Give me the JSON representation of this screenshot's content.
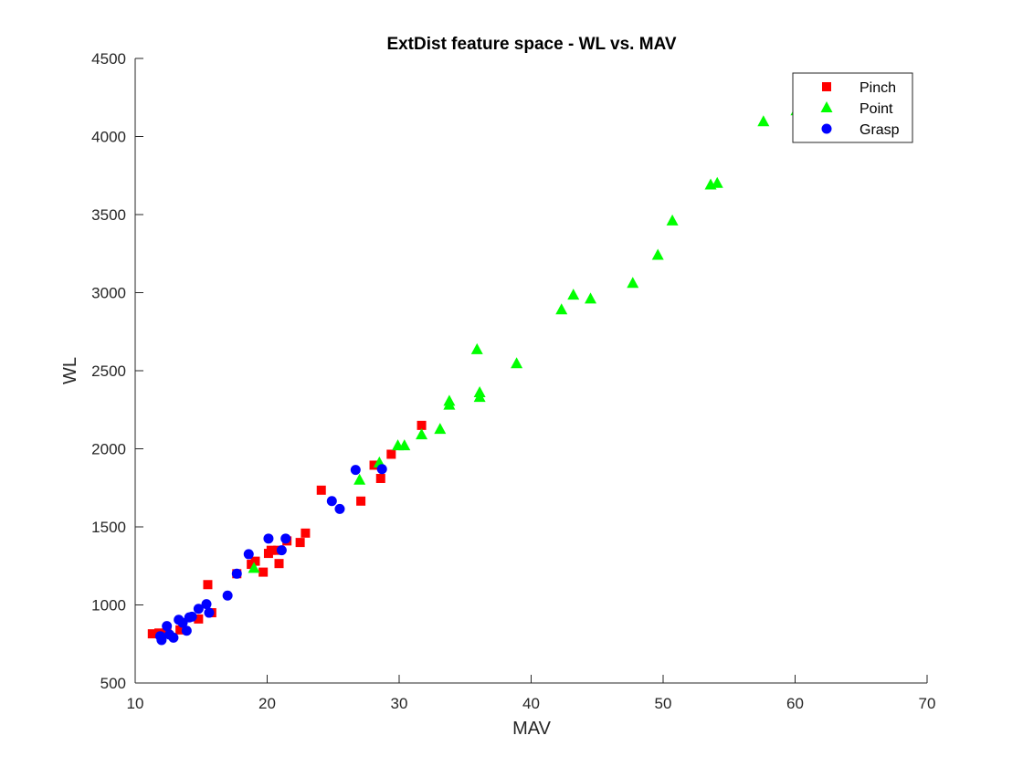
{
  "chart_data": {
    "type": "scatter",
    "title": "ExtDist feature space - WL vs. MAV",
    "xlabel": "MAV",
    "ylabel": "WL",
    "xlim": [
      10,
      70
    ],
    "ylim": [
      500,
      4500
    ],
    "xticks": [
      "10",
      "20",
      "30",
      "40",
      "50",
      "60",
      "70"
    ],
    "yticks": [
      "500",
      "1000",
      "1500",
      "2000",
      "2500",
      "3000",
      "3500",
      "4000",
      "4500"
    ],
    "grid": false,
    "legend_position": "top-right",
    "series": [
      {
        "name": "Pinch",
        "marker": "square",
        "color": "#ff0000",
        "points": [
          [
            11.3,
            815
          ],
          [
            11.8,
            820
          ],
          [
            12.4,
            830
          ],
          [
            13.4,
            840
          ],
          [
            14.8,
            910
          ],
          [
            15.5,
            1130
          ],
          [
            15.8,
            950
          ],
          [
            17.7,
            1200
          ],
          [
            18.8,
            1260
          ],
          [
            19.1,
            1280
          ],
          [
            19.7,
            1210
          ],
          [
            20.1,
            1330
          ],
          [
            20.3,
            1350
          ],
          [
            20.8,
            1350
          ],
          [
            20.9,
            1265
          ],
          [
            21.5,
            1410
          ],
          [
            22.5,
            1400
          ],
          [
            22.9,
            1460
          ],
          [
            24.1,
            1735
          ],
          [
            27.1,
            1665
          ],
          [
            28.1,
            1895
          ],
          [
            28.6,
            1810
          ],
          [
            29.4,
            1965
          ],
          [
            31.7,
            2150
          ]
        ]
      },
      {
        "name": "Point",
        "marker": "triangle",
        "color": "#00ff00",
        "points": [
          [
            19.0,
            1235
          ],
          [
            27.0,
            1800
          ],
          [
            28.5,
            1910
          ],
          [
            29.9,
            2020
          ],
          [
            30.4,
            2020
          ],
          [
            31.7,
            2090
          ],
          [
            33.1,
            2125
          ],
          [
            33.8,
            2280
          ],
          [
            33.8,
            2305
          ],
          [
            35.9,
            2635
          ],
          [
            36.1,
            2330
          ],
          [
            36.1,
            2360
          ],
          [
            38.9,
            2545
          ],
          [
            42.3,
            2890
          ],
          [
            43.2,
            2985
          ],
          [
            44.5,
            2960
          ],
          [
            47.7,
            3060
          ],
          [
            49.6,
            3240
          ],
          [
            50.7,
            3460
          ],
          [
            53.6,
            3690
          ],
          [
            54.1,
            3700
          ],
          [
            57.6,
            4095
          ],
          [
            60.1,
            4165
          ]
        ]
      },
      {
        "name": "Grasp",
        "marker": "circle",
        "color": "#0000ff",
        "points": [
          [
            11.9,
            800
          ],
          [
            12.0,
            775
          ],
          [
            12.4,
            865
          ],
          [
            12.6,
            810
          ],
          [
            12.9,
            790
          ],
          [
            13.3,
            905
          ],
          [
            13.6,
            885
          ],
          [
            13.9,
            835
          ],
          [
            14.1,
            920
          ],
          [
            14.3,
            925
          ],
          [
            14.8,
            975
          ],
          [
            15.4,
            1005
          ],
          [
            15.6,
            950
          ],
          [
            17.0,
            1060
          ],
          [
            17.7,
            1200
          ],
          [
            18.6,
            1325
          ],
          [
            20.1,
            1425
          ],
          [
            21.1,
            1350
          ],
          [
            21.4,
            1425
          ],
          [
            24.9,
            1665
          ],
          [
            25.5,
            1615
          ],
          [
            26.7,
            1865
          ],
          [
            28.7,
            1870
          ]
        ]
      }
    ]
  }
}
